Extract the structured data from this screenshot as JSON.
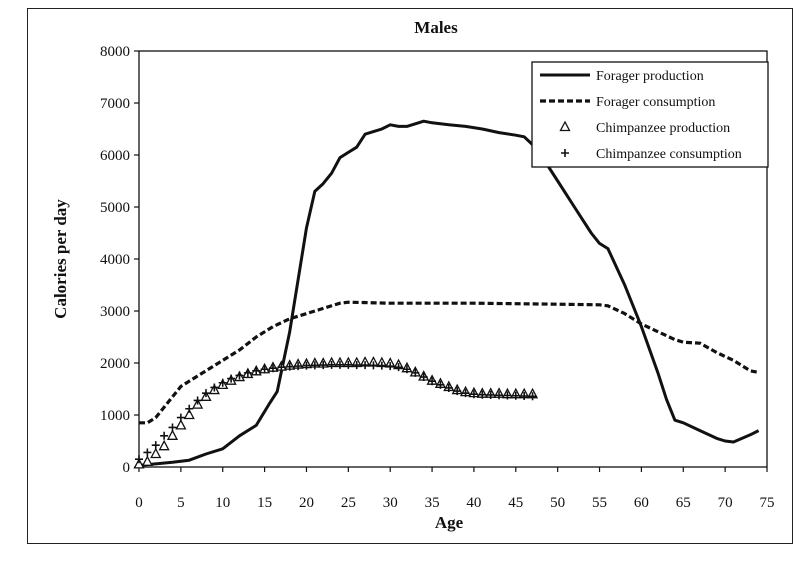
{
  "chart_data": {
    "type": "line",
    "title": "Males",
    "xlabel": "Age",
    "ylabel": "Calories per day",
    "xlim": [
      0,
      75
    ],
    "ylim": [
      0,
      8000
    ],
    "xticks": [
      "0",
      "5",
      "10",
      "15",
      "20",
      "25",
      "30",
      "35",
      "40",
      "45",
      "50",
      "55",
      "60",
      "65",
      "70",
      "75"
    ],
    "yticks": [
      "0",
      "1000",
      "2000",
      "3000",
      "4000",
      "5000",
      "6000",
      "7000",
      "8000"
    ],
    "grid": false,
    "legend_position": "top-right",
    "series": [
      {
        "name": "Forager production",
        "style": "solid-line",
        "points": [
          [
            0,
            30
          ],
          [
            2,
            60
          ],
          [
            4,
            90
          ],
          [
            6,
            130
          ],
          [
            8,
            250
          ],
          [
            10,
            350
          ],
          [
            12,
            600
          ],
          [
            14,
            800
          ],
          [
            15.5,
            1200
          ],
          [
            16.5,
            1450
          ],
          [
            18,
            2600
          ],
          [
            19,
            3600
          ],
          [
            20,
            4600
          ],
          [
            21,
            5300
          ],
          [
            22,
            5450
          ],
          [
            23,
            5650
          ],
          [
            24,
            5950
          ],
          [
            25,
            6050
          ],
          [
            26,
            6150
          ],
          [
            27,
            6400
          ],
          [
            28,
            6450
          ],
          [
            29,
            6500
          ],
          [
            30,
            6580
          ],
          [
            31,
            6550
          ],
          [
            32,
            6550
          ],
          [
            33,
            6600
          ],
          [
            34,
            6650
          ],
          [
            35,
            6620
          ],
          [
            37,
            6580
          ],
          [
            39,
            6550
          ],
          [
            41,
            6500
          ],
          [
            43,
            6430
          ],
          [
            45,
            6380
          ],
          [
            46,
            6350
          ],
          [
            47,
            6200
          ],
          [
            48,
            6000
          ],
          [
            50,
            5500
          ],
          [
            52,
            5000
          ],
          [
            54,
            4500
          ],
          [
            55,
            4300
          ],
          [
            56,
            4200
          ],
          [
            58,
            3500
          ],
          [
            60,
            2700
          ],
          [
            62,
            1800
          ],
          [
            63,
            1300
          ],
          [
            64,
            900
          ],
          [
            65,
            850
          ],
          [
            67,
            700
          ],
          [
            69,
            550
          ],
          [
            70,
            500
          ],
          [
            71,
            480
          ],
          [
            72,
            550
          ],
          [
            73,
            620
          ],
          [
            74,
            700
          ]
        ]
      },
      {
        "name": "Forager consumption",
        "style": "dashed-line",
        "points": [
          [
            0,
            850
          ],
          [
            1,
            850
          ],
          [
            2,
            950
          ],
          [
            3,
            1150
          ],
          [
            4,
            1350
          ],
          [
            5,
            1550
          ],
          [
            7,
            1750
          ],
          [
            10,
            2050
          ],
          [
            12,
            2250
          ],
          [
            14,
            2500
          ],
          [
            16,
            2700
          ],
          [
            18,
            2850
          ],
          [
            20,
            2950
          ],
          [
            22,
            3050
          ],
          [
            24,
            3150
          ],
          [
            25,
            3170
          ],
          [
            30,
            3150
          ],
          [
            35,
            3150
          ],
          [
            40,
            3150
          ],
          [
            45,
            3140
          ],
          [
            50,
            3130
          ],
          [
            55,
            3120
          ],
          [
            56,
            3100
          ],
          [
            58,
            2950
          ],
          [
            60,
            2750
          ],
          [
            62,
            2600
          ],
          [
            64,
            2450
          ],
          [
            65,
            2400
          ],
          [
            67,
            2380
          ],
          [
            69,
            2200
          ],
          [
            71,
            2050
          ],
          [
            73,
            1850
          ],
          [
            74,
            1820
          ]
        ]
      },
      {
        "name": "Chimpanzee production",
        "style": "triangle-markers",
        "points": [
          [
            0,
            50
          ],
          [
            1,
            100
          ],
          [
            2,
            250
          ],
          [
            3,
            400
          ],
          [
            4,
            600
          ],
          [
            5,
            800
          ],
          [
            6,
            1000
          ],
          [
            7,
            1200
          ],
          [
            8,
            1350
          ],
          [
            9,
            1480
          ],
          [
            10,
            1580
          ],
          [
            11,
            1660
          ],
          [
            12,
            1730
          ],
          [
            13,
            1790
          ],
          [
            14,
            1840
          ],
          [
            15,
            1880
          ],
          [
            16,
            1910
          ],
          [
            17,
            1930
          ],
          [
            18,
            1950
          ],
          [
            19,
            1970
          ],
          [
            20,
            1980
          ],
          [
            21,
            1990
          ],
          [
            22,
            1990
          ],
          [
            23,
            2000
          ],
          [
            24,
            2000
          ],
          [
            25,
            2000
          ],
          [
            26,
            2000
          ],
          [
            27,
            2010
          ],
          [
            28,
            2010
          ],
          [
            29,
            2000
          ],
          [
            30,
            1990
          ],
          [
            31,
            1960
          ],
          [
            32,
            1900
          ],
          [
            33,
            1820
          ],
          [
            34,
            1740
          ],
          [
            35,
            1660
          ],
          [
            36,
            1600
          ],
          [
            37,
            1540
          ],
          [
            38,
            1480
          ],
          [
            39,
            1440
          ],
          [
            40,
            1420
          ],
          [
            41,
            1410
          ],
          [
            42,
            1410
          ],
          [
            43,
            1410
          ],
          [
            44,
            1400
          ],
          [
            45,
            1400
          ],
          [
            46,
            1400
          ],
          [
            47,
            1400
          ]
        ]
      },
      {
        "name": "Chimpanzee consumption",
        "style": "plus-markers",
        "points": [
          [
            0,
            150
          ],
          [
            1,
            280
          ],
          [
            2,
            420
          ],
          [
            3,
            600
          ],
          [
            4,
            760
          ],
          [
            5,
            950
          ],
          [
            6,
            1120
          ],
          [
            7,
            1280
          ],
          [
            8,
            1420
          ],
          [
            9,
            1530
          ],
          [
            10,
            1620
          ],
          [
            11,
            1700
          ],
          [
            12,
            1760
          ],
          [
            13,
            1810
          ],
          [
            14,
            1850
          ],
          [
            15,
            1880
          ],
          [
            16,
            1900
          ],
          [
            17,
            1920
          ],
          [
            18,
            1930
          ],
          [
            19,
            1940
          ],
          [
            20,
            1950
          ],
          [
            21,
            1955
          ],
          [
            22,
            1960
          ],
          [
            23,
            1965
          ],
          [
            24,
            1965
          ],
          [
            25,
            1965
          ],
          [
            26,
            1960
          ],
          [
            27,
            1960
          ],
          [
            28,
            1955
          ],
          [
            29,
            1950
          ],
          [
            30,
            1940
          ],
          [
            31,
            1920
          ],
          [
            32,
            1880
          ],
          [
            33,
            1810
          ],
          [
            34,
            1730
          ],
          [
            35,
            1650
          ],
          [
            36,
            1580
          ],
          [
            37,
            1520
          ],
          [
            38,
            1460
          ],
          [
            39,
            1420
          ],
          [
            40,
            1400
          ],
          [
            41,
            1390
          ],
          [
            42,
            1385
          ],
          [
            43,
            1380
          ],
          [
            44,
            1375
          ],
          [
            45,
            1370
          ],
          [
            46,
            1365
          ],
          [
            47,
            1360
          ]
        ]
      }
    ]
  }
}
